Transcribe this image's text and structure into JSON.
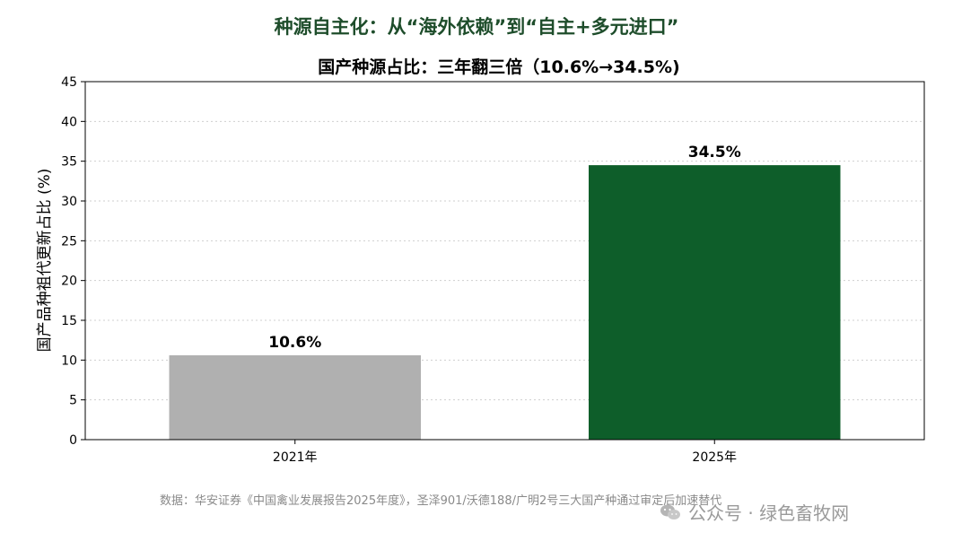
{
  "suptitle": "种源自主化：从“海外依赖”到“自主+多元进口”",
  "source_note": "数据：华安证券《中国禽业发展报告2025年度》，圣泽901/沃德188/广明2号三大国产种通过审定后加速替代",
  "watermark": "公众号 · 绿色畜牧网",
  "colors": {
    "bar_2021": "#b0b0b0",
    "bar_2025": "#0e5e2a",
    "suptitle": "#1e4d2b"
  },
  "chart_data": {
    "type": "bar",
    "title": "国产种源占比：三年翻三倍（10.6%→34.5%)",
    "xlabel": "",
    "ylabel": "国产品种祖代更新占比 (%)",
    "categories": [
      "2021年",
      "2025年"
    ],
    "values": [
      10.6,
      34.5
    ],
    "value_labels": [
      "10.6%",
      "34.5%"
    ],
    "ylim": [
      0,
      45
    ],
    "yticks": [
      "0",
      "5",
      "10",
      "15",
      "20",
      "25",
      "30",
      "35",
      "40",
      "45"
    ],
    "grid": true
  }
}
